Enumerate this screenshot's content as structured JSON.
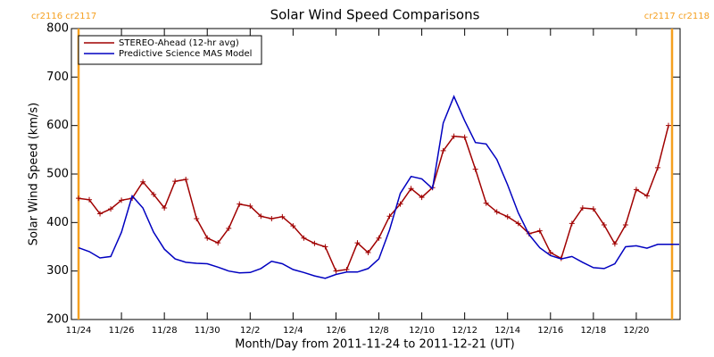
{
  "chart_data": {
    "type": "line",
    "title": "Solar Wind Speed Comparisons",
    "x_label": "Month/Day from 2011-11-24 to 2011-12-21 (UT)",
    "y_label": "Solar Wind Speed (km/s)",
    "xlim": [
      "2011-11-23T16:00",
      "2011-12-22T01:00"
    ],
    "ylim": [
      200,
      800
    ],
    "yticks": [
      200,
      300,
      400,
      500,
      600,
      700,
      800
    ],
    "xticks": [
      {
        "value": "2011-11-24T00:00",
        "label": "11/24"
      },
      {
        "value": "2011-11-26T00:00",
        "label": "11/26"
      },
      {
        "value": "2011-11-28T00:00",
        "label": "11/28"
      },
      {
        "value": "2011-11-30T00:00",
        "label": "11/30"
      },
      {
        "value": "2011-12-02T00:00",
        "label": "12/2"
      },
      {
        "value": "2011-12-04T00:00",
        "label": "12/4"
      },
      {
        "value": "2011-12-06T00:00",
        "label": "12/6"
      },
      {
        "value": "2011-12-08T00:00",
        "label": "12/8"
      },
      {
        "value": "2011-12-10T00:00",
        "label": "12/10"
      },
      {
        "value": "2011-12-12T00:00",
        "label": "12/12"
      },
      {
        "value": "2011-12-14T00:00",
        "label": "12/14"
      },
      {
        "value": "2011-12-16T00:00",
        "label": "12/16"
      },
      {
        "value": "2011-12-18T00:00",
        "label": "12/18"
      },
      {
        "value": "2011-12-20T00:00",
        "label": "12/20"
      }
    ],
    "legend": "upper left",
    "boundaries": [
      {
        "x": "2011-11-24T00:00",
        "label": "cr2116 cr2117",
        "color": "#f5a020"
      },
      {
        "x": "2011-12-21T16:00",
        "label": "cr2117 cr2118",
        "color": "#f5a020"
      }
    ],
    "series": [
      {
        "name": "STEREO-Ahead (12-hr avg)",
        "color": "#a00000",
        "marker": "+",
        "x": [
          "2011-11-24T00:00",
          "2011-11-24T12:00",
          "2011-11-25T00:00",
          "2011-11-25T12:00",
          "2011-11-26T00:00",
          "2011-11-26T12:00",
          "2011-11-27T00:00",
          "2011-11-27T12:00",
          "2011-11-28T00:00",
          "2011-11-28T12:00",
          "2011-11-29T00:00",
          "2011-11-29T12:00",
          "2011-11-30T00:00",
          "2011-11-30T12:00",
          "2011-12-01T00:00",
          "2011-12-01T12:00",
          "2011-12-02T00:00",
          "2011-12-02T12:00",
          "2011-12-03T00:00",
          "2011-12-03T12:00",
          "2011-12-04T00:00",
          "2011-12-04T12:00",
          "2011-12-05T00:00",
          "2011-12-05T12:00",
          "2011-12-06T00:00",
          "2011-12-06T12:00",
          "2011-12-07T00:00",
          "2011-12-07T12:00",
          "2011-12-08T00:00",
          "2011-12-08T12:00",
          "2011-12-09T00:00",
          "2011-12-09T12:00",
          "2011-12-10T00:00",
          "2011-12-10T12:00",
          "2011-12-11T00:00",
          "2011-12-11T12:00",
          "2011-12-12T00:00",
          "2011-12-12T12:00",
          "2011-12-13T00:00",
          "2011-12-13T12:00",
          "2011-12-14T00:00",
          "2011-12-14T12:00",
          "2011-12-15T00:00",
          "2011-12-15T12:00",
          "2011-12-16T00:00",
          "2011-12-16T12:00",
          "2011-12-17T00:00",
          "2011-12-17T12:00",
          "2011-12-18T00:00",
          "2011-12-18T12:00",
          "2011-12-19T00:00",
          "2011-12-19T12:00",
          "2011-12-20T00:00",
          "2011-12-20T12:00",
          "2011-12-21T00:00",
          "2011-12-21T12:00"
        ],
        "values": [
          450,
          447,
          418,
          428,
          446,
          450,
          484,
          458,
          430,
          485,
          489,
          408,
          368,
          358,
          388,
          438,
          434,
          413,
          408,
          412,
          393,
          368,
          357,
          350,
          300,
          303,
          358,
          338,
          368,
          413,
          438,
          470,
          452,
          472,
          548,
          578,
          576,
          510,
          440,
          422,
          412,
          398,
          377,
          383,
          338,
          326,
          398,
          430,
          428,
          395,
          356,
          395,
          468,
          455,
          513,
          600
        ]
      },
      {
        "name": "Predictive Science MAS Model",
        "color": "#0000c0",
        "x": [
          "2011-11-24T00:00",
          "2011-11-24T12:00",
          "2011-11-25T00:00",
          "2011-11-25T12:00",
          "2011-11-26T00:00",
          "2011-11-26T12:00",
          "2011-11-27T00:00",
          "2011-11-27T12:00",
          "2011-11-28T00:00",
          "2011-11-28T12:00",
          "2011-11-29T00:00",
          "2011-11-29T12:00",
          "2011-11-30T00:00",
          "2011-11-30T12:00",
          "2011-12-01T00:00",
          "2011-12-01T12:00",
          "2011-12-02T00:00",
          "2011-12-02T12:00",
          "2011-12-03T00:00",
          "2011-12-03T12:00",
          "2011-12-04T00:00",
          "2011-12-04T12:00",
          "2011-12-05T00:00",
          "2011-12-05T12:00",
          "2011-12-06T00:00",
          "2011-12-06T12:00",
          "2011-12-07T00:00",
          "2011-12-07T12:00",
          "2011-12-08T00:00",
          "2011-12-08T12:00",
          "2011-12-09T00:00",
          "2011-12-09T12:00",
          "2011-12-10T00:00",
          "2011-12-10T12:00",
          "2011-12-11T00:00",
          "2011-12-11T12:00",
          "2011-12-12T00:00",
          "2011-12-12T12:00",
          "2011-12-13T00:00",
          "2011-12-13T12:00",
          "2011-12-14T00:00",
          "2011-12-14T12:00",
          "2011-12-15T00:00",
          "2011-12-15T12:00",
          "2011-12-16T00:00",
          "2011-12-16T12:00",
          "2011-12-17T00:00",
          "2011-12-17T12:00",
          "2011-12-18T00:00",
          "2011-12-18T12:00",
          "2011-12-19T00:00",
          "2011-12-19T12:00",
          "2011-12-20T00:00",
          "2011-12-20T12:00",
          "2011-12-21T00:00",
          "2011-12-21T12:00",
          "2011-12-22T00:00"
        ],
        "values": [
          348,
          340,
          327,
          330,
          380,
          455,
          430,
          380,
          345,
          325,
          318,
          316,
          315,
          308,
          300,
          296,
          297,
          305,
          320,
          315,
          303,
          297,
          290,
          285,
          293,
          298,
          298,
          305,
          325,
          385,
          460,
          495,
          490,
          470,
          605,
          660,
          610,
          565,
          562,
          530,
          478,
          420,
          375,
          348,
          332,
          325,
          330,
          318,
          307,
          305,
          315,
          350,
          352,
          347,
          355,
          355,
          355
        ]
      }
    ]
  }
}
